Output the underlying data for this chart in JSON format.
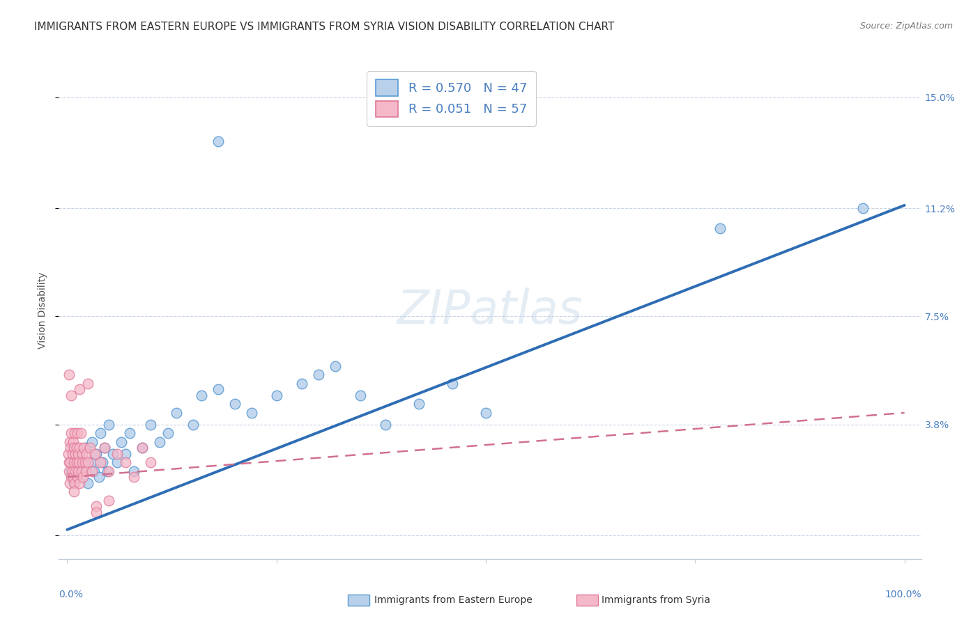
{
  "title": "IMMIGRANTS FROM EASTERN EUROPE VS IMMIGRANTS FROM SYRIA VISION DISABILITY CORRELATION CHART",
  "source": "Source: ZipAtlas.com",
  "ylabel": "Vision Disability",
  "yticks": [
    0.0,
    0.038,
    0.075,
    0.112,
    0.15
  ],
  "ytick_labels": [
    "",
    "3.8%",
    "7.5%",
    "11.2%",
    "15.0%"
  ],
  "xlim": [
    -0.01,
    1.02
  ],
  "ylim": [
    -0.008,
    0.162
  ],
  "watermark": "ZIPatlas",
  "legend_blue_r": "R = 0.570",
  "legend_blue_n": "N = 47",
  "legend_pink_r": "R = 0.051",
  "legend_pink_n": "N = 57",
  "legend_label_blue": "Immigrants from Eastern Europe",
  "legend_label_pink": "Immigrants from Syria",
  "blue_fill": "#b8d0ea",
  "blue_edge": "#5b9bd5",
  "pink_fill": "#f5b8c8",
  "pink_edge": "#e07898",
  "blue_line_color": "#2e6db4",
  "pink_line_color": "#d07090",
  "blue_line": [
    0.0,
    0.002,
    1.0,
    0.113
  ],
  "pink_line": [
    0.0,
    0.02,
    1.0,
    0.042
  ],
  "blue_x": [
    0.005,
    0.008,
    0.01,
    0.012,
    0.015,
    0.018,
    0.02,
    0.022,
    0.025,
    0.028,
    0.03,
    0.032,
    0.035,
    0.038,
    0.04,
    0.042,
    0.045,
    0.048,
    0.05,
    0.055,
    0.06,
    0.065,
    0.07,
    0.075,
    0.08,
    0.09,
    0.1,
    0.11,
    0.12,
    0.13,
    0.15,
    0.16,
    0.18,
    0.2,
    0.22,
    0.25,
    0.28,
    0.3,
    0.32,
    0.35,
    0.18,
    0.38,
    0.42,
    0.46,
    0.5,
    0.78,
    0.95
  ],
  "blue_y": [
    0.022,
    0.018,
    0.025,
    0.02,
    0.028,
    0.022,
    0.025,
    0.03,
    0.018,
    0.025,
    0.032,
    0.022,
    0.028,
    0.02,
    0.035,
    0.025,
    0.03,
    0.022,
    0.038,
    0.028,
    0.025,
    0.032,
    0.028,
    0.035,
    0.022,
    0.03,
    0.038,
    0.032,
    0.035,
    0.042,
    0.038,
    0.048,
    0.05,
    0.045,
    0.042,
    0.048,
    0.052,
    0.055,
    0.058,
    0.048,
    0.135,
    0.038,
    0.045,
    0.052,
    0.042,
    0.105,
    0.112
  ],
  "pink_x": [
    0.001,
    0.002,
    0.002,
    0.003,
    0.003,
    0.004,
    0.004,
    0.005,
    0.005,
    0.006,
    0.006,
    0.007,
    0.007,
    0.008,
    0.008,
    0.009,
    0.009,
    0.01,
    0.01,
    0.011,
    0.011,
    0.012,
    0.012,
    0.013,
    0.013,
    0.014,
    0.015,
    0.015,
    0.016,
    0.017,
    0.018,
    0.018,
    0.019,
    0.02,
    0.021,
    0.022,
    0.023,
    0.025,
    0.027,
    0.03,
    0.033,
    0.035,
    0.04,
    0.045,
    0.05,
    0.06,
    0.07,
    0.08,
    0.09,
    0.1,
    0.002,
    0.005,
    0.008,
    0.015,
    0.025,
    0.035,
    0.05
  ],
  "pink_y": [
    0.028,
    0.025,
    0.022,
    0.032,
    0.018,
    0.03,
    0.025,
    0.02,
    0.035,
    0.022,
    0.028,
    0.032,
    0.02,
    0.025,
    0.03,
    0.018,
    0.035,
    0.022,
    0.028,
    0.025,
    0.03,
    0.02,
    0.035,
    0.022,
    0.028,
    0.025,
    0.03,
    0.018,
    0.035,
    0.022,
    0.028,
    0.025,
    0.02,
    0.03,
    0.025,
    0.022,
    0.028,
    0.025,
    0.03,
    0.022,
    0.028,
    0.01,
    0.025,
    0.03,
    0.022,
    0.028,
    0.025,
    0.02,
    0.03,
    0.025,
    0.055,
    0.048,
    0.015,
    0.05,
    0.052,
    0.008,
    0.012
  ],
  "title_fontsize": 11,
  "source_fontsize": 9,
  "axis_label_fontsize": 10,
  "tick_fontsize": 10,
  "legend_fontsize": 13,
  "watermark_size": 48,
  "bg": "#ffffff",
  "grid_color": "#c8d4e4",
  "tick_color": "#4a7fc1",
  "spine_color": "#c0ccd8"
}
